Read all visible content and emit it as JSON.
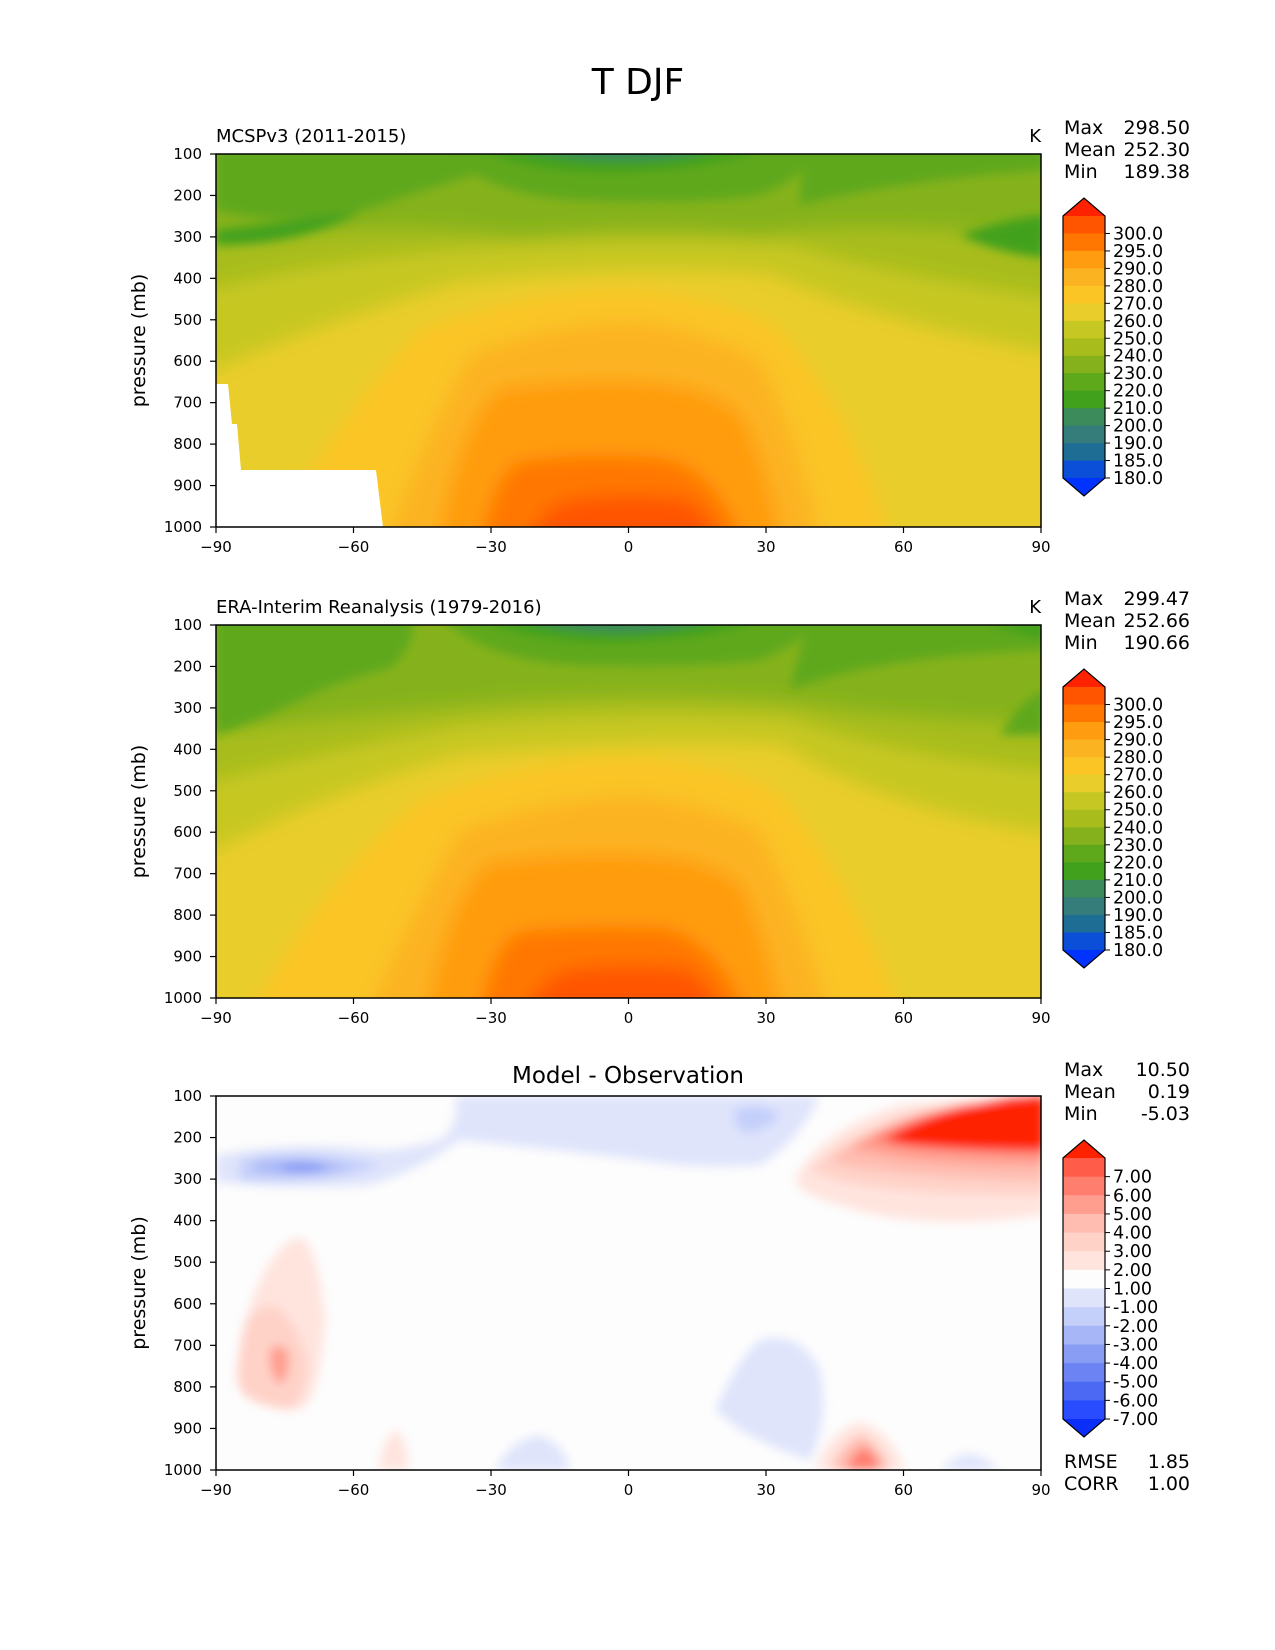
{
  "figure_title": "T DJF",
  "chart_data": [
    {
      "type": "contourf",
      "title_left": "MCSPv3 (2011-2015)",
      "units": "K",
      "ylabel": "pressure (mb)",
      "xlabel": "",
      "xlim": [
        -90,
        90
      ],
      "ylim": [
        1000,
        100
      ],
      "xticks": [
        -90,
        -60,
        -30,
        0,
        30,
        60,
        90
      ],
      "yticks": [
        100,
        200,
        300,
        400,
        500,
        600,
        700,
        800,
        900,
        1000
      ],
      "stats": [
        {
          "label": "Max",
          "value": "298.50"
        },
        {
          "label": "Mean",
          "value": "252.30"
        },
        {
          "label": "Min",
          "value": "189.38"
        }
      ],
      "colorbar": {
        "levels": [
          "300.0",
          "295.0",
          "290.0",
          "280.0",
          "270.0",
          "260.0",
          "250.0",
          "240.0",
          "230.0",
          "220.0",
          "210.0",
          "200.0",
          "190.0",
          "185.0",
          "180.0"
        ],
        "colors": [
          "#ff2200",
          "#ff5500",
          "#ff7700",
          "#ff9c10",
          "#fcb322",
          "#fbc526",
          "#e9cd2a",
          "#c7c723",
          "#a8bd1b",
          "#85b21c",
          "#5ea81c",
          "#42a11c",
          "#3c8b5a",
          "#357d7a",
          "#1e6d95",
          "#0b4fd8",
          "#0033ff"
        ]
      },
      "grid": false
    },
    {
      "type": "contourf",
      "title_left": "ERA-Interim Reanalysis (1979-2016)",
      "units": "K",
      "ylabel": "pressure (mb)",
      "xlabel": "",
      "xlim": [
        -90,
        90
      ],
      "ylim": [
        1000,
        100
      ],
      "xticks": [
        -90,
        -60,
        -30,
        0,
        30,
        60,
        90
      ],
      "yticks": [
        100,
        200,
        300,
        400,
        500,
        600,
        700,
        800,
        900,
        1000
      ],
      "stats": [
        {
          "label": "Max",
          "value": "299.47"
        },
        {
          "label": "Mean",
          "value": "252.66"
        },
        {
          "label": "Min",
          "value": "190.66"
        }
      ],
      "colorbar": {
        "levels": [
          "300.0",
          "295.0",
          "290.0",
          "280.0",
          "270.0",
          "260.0",
          "250.0",
          "240.0",
          "230.0",
          "220.0",
          "210.0",
          "200.0",
          "190.0",
          "185.0",
          "180.0"
        ],
        "colors": [
          "#ff2200",
          "#ff5500",
          "#ff7700",
          "#ff9c10",
          "#fcb322",
          "#fbc526",
          "#e9cd2a",
          "#c7c723",
          "#a8bd1b",
          "#85b21c",
          "#5ea81c",
          "#42a11c",
          "#3c8b5a",
          "#357d7a",
          "#1e6d95",
          "#0b4fd8",
          "#0033ff"
        ]
      },
      "grid": false
    },
    {
      "type": "contourf",
      "title_center": "Model - Observation",
      "ylabel": "pressure (mb)",
      "xlabel": "",
      "xlim": [
        -90,
        90
      ],
      "ylim": [
        1000,
        100
      ],
      "xticks": [
        -90,
        -60,
        -30,
        0,
        30,
        60,
        90
      ],
      "yticks": [
        100,
        200,
        300,
        400,
        500,
        600,
        700,
        800,
        900,
        1000
      ],
      "stats": [
        {
          "label": "Max",
          "value": "10.50"
        },
        {
          "label": "Mean",
          "value": "0.19"
        },
        {
          "label": "Min",
          "value": "-5.03"
        }
      ],
      "bottom_stats": [
        {
          "label": "RMSE",
          "value": "1.85"
        },
        {
          "label": "CORR",
          "value": "1.00"
        }
      ],
      "colorbar": {
        "levels": [
          "7.00",
          "6.00",
          "5.00",
          "4.00",
          "3.00",
          "2.00",
          "1.00",
          "-1.00",
          "-2.00",
          "-3.00",
          "-4.00",
          "-5.00",
          "-6.00",
          "-7.00"
        ],
        "colors": [
          "#ff2200",
          "#ff5c4a",
          "#ff7e6e",
          "#ff9e8f",
          "#ffbcb0",
          "#ffd2c8",
          "#ffe4de",
          "#fdfdfd",
          "#dfe4fb",
          "#c4cffa",
          "#a7b6f7",
          "#8a9df5",
          "#6c84f3",
          "#4c69f3",
          "#2a4cff",
          "#0b2ff8"
        ]
      },
      "grid": false
    }
  ]
}
